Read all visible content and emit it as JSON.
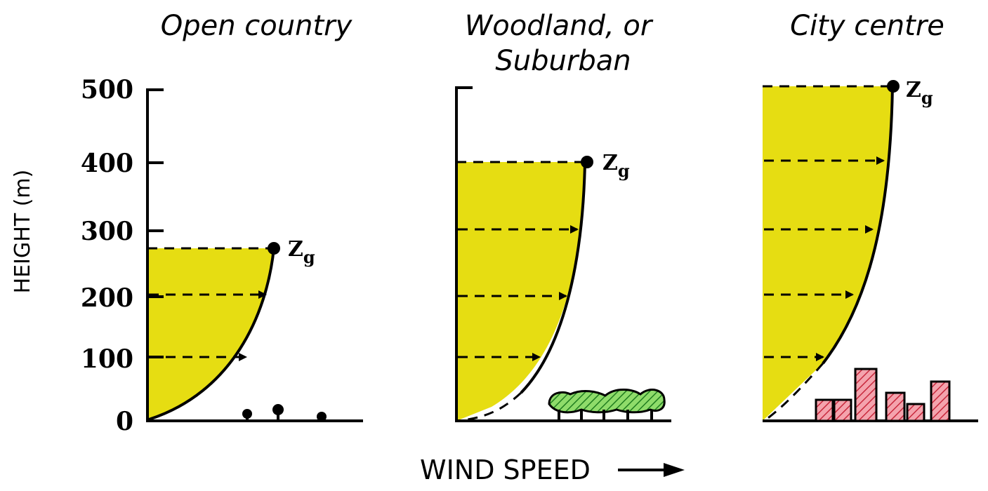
{
  "y_axis": {
    "label": "HEIGHT (m)",
    "ticks": [
      "500",
      "400",
      "300",
      "200",
      "100",
      "0"
    ]
  },
  "x_axis": {
    "label": "WIND SPEED"
  },
  "gradient_height_label": "Z",
  "gradient_height_subscript": "g",
  "colors": {
    "profile_fill": "#e6dd12",
    "trees": "#3dbb3a",
    "buildings": "#d9384b"
  },
  "panels": [
    {
      "title_lines": [
        "Open country"
      ],
      "gradient_height_m": 270,
      "terrain": "open"
    },
    {
      "title_lines": [
        "Woodland, or",
        "Suburban"
      ],
      "gradient_height_m": 400,
      "terrain": "woodland"
    },
    {
      "title_lines": [
        "City centre"
      ],
      "gradient_height_m": 500,
      "terrain": "city"
    }
  ]
}
